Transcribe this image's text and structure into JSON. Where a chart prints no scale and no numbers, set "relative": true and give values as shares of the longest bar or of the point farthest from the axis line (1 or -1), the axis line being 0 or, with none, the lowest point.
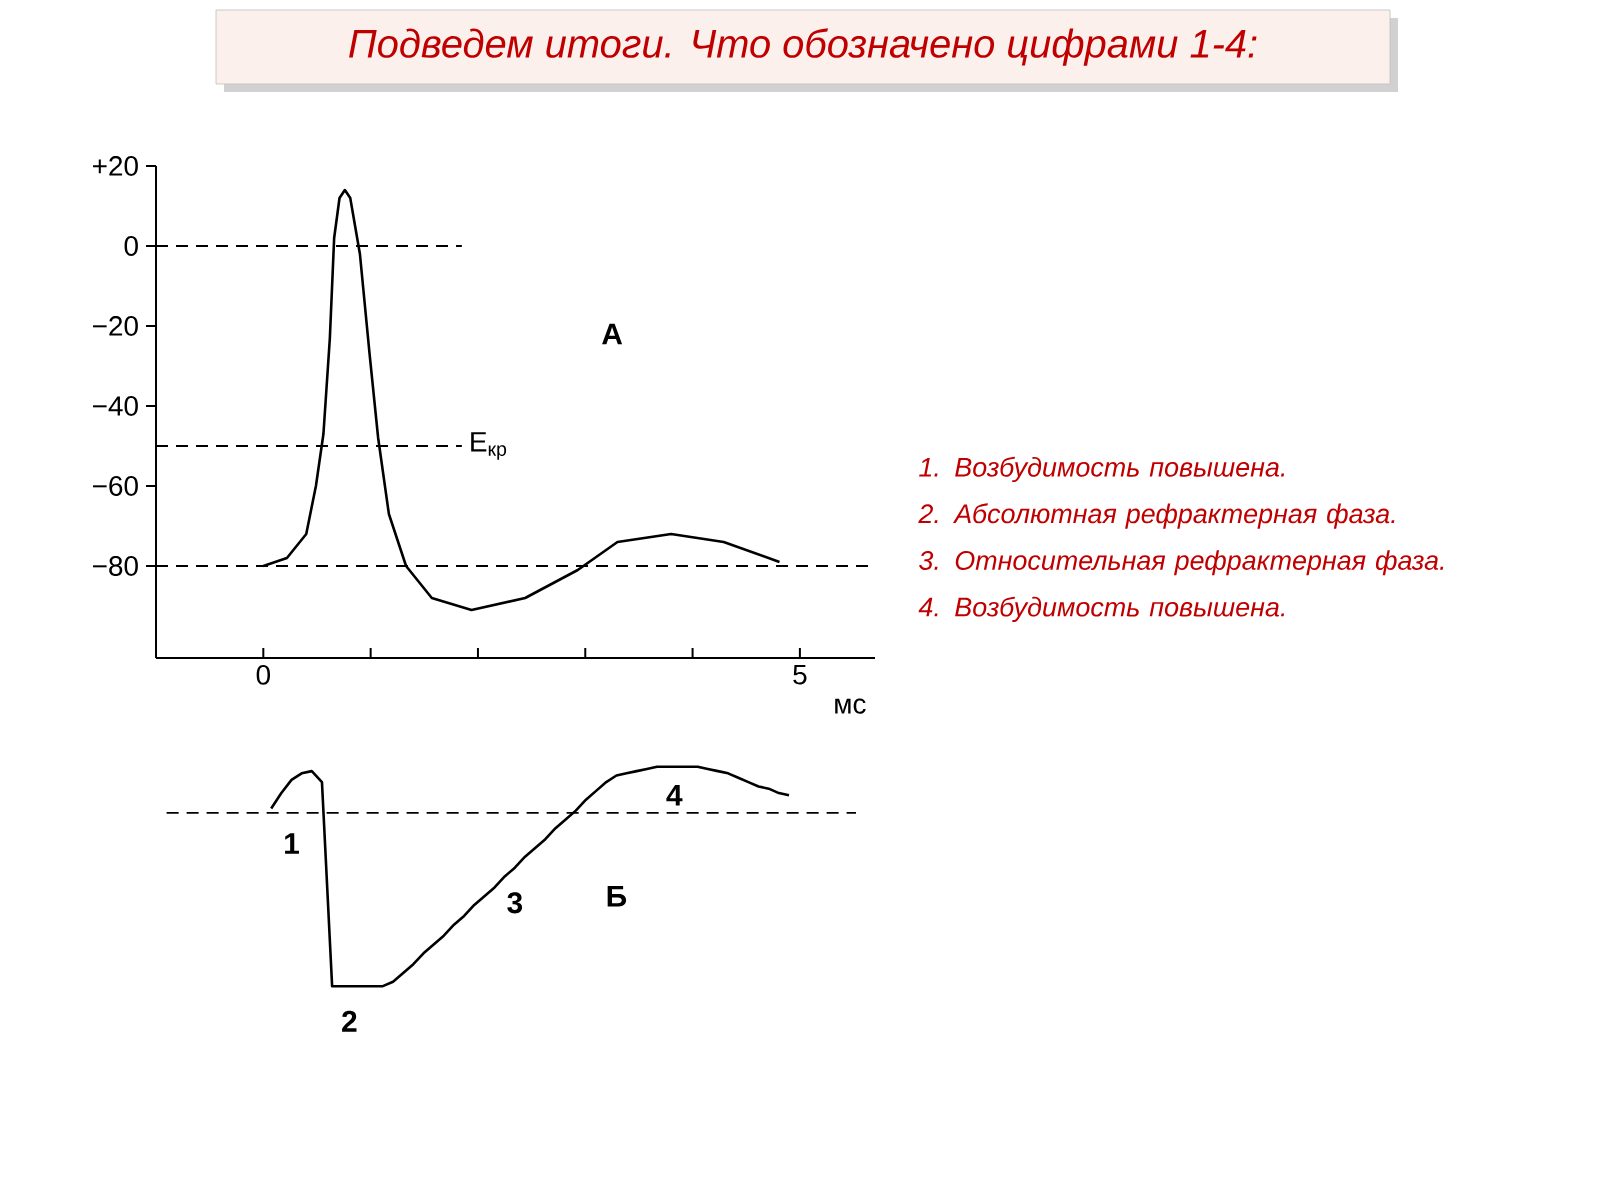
{
  "chart_data": [
    {
      "type": "line",
      "title": "Подведем итоги. Что обозначено цифрами 1-4:",
      "xlabel": "мс",
      "x": [
        0,
        0.22,
        0.4,
        0.49,
        0.56,
        0.62,
        0.66,
        0.71,
        0.76,
        0.81,
        0.9,
        0.99,
        1.07,
        1.17,
        1.33,
        1.57,
        1.94,
        2.44,
        2.93,
        3.3,
        3.8,
        4.29,
        4.81
      ],
      "series": [
        {
          "color": "#000000",
          "values": [
            -80,
            -78,
            -72,
            -60,
            -47,
            -23,
            2,
            12,
            14,
            12,
            -2,
            -27,
            -48,
            -67,
            -80,
            -88,
            -91,
            -88,
            -81,
            -74,
            -72,
            -74,
            -79
          ]
        }
      ],
      "xlim": [
        -1,
        5.7
      ],
      "ylim": [
        -103,
        20
      ],
      "xticks": [
        0,
        {
          "value": 1,
          "label": null
        },
        {
          "value": 2,
          "label": null
        },
        {
          "value": 3,
          "label": null
        },
        {
          "value": 4,
          "label": null
        },
        5
      ],
      "yticks": [
        {
          "value": 20,
          "label": "+20"
        },
        0,
        {
          "value": -20,
          "label": "−20"
        },
        {
          "value": -40,
          "label": "−40"
        },
        {
          "value": -60,
          "label": "−60"
        },
        {
          "value": -80,
          "label": "−80"
        }
      ],
      "ref_lines": [
        {
          "axis": "y",
          "value": 0,
          "line_style": "dashed"
        },
        {
          "axis": "y",
          "value": -50,
          "label": "E$_{кр}$",
          "line_style": "dashed"
        },
        {
          "axis": "y",
          "value": -80,
          "line_style": "dashed"
        }
      ],
      "annotations": [
        "А"
      ]
    },
    {
      "type": "line",
      "relative": true,
      "categories": [
        null,
        null,
        null,
        null,
        null,
        null,
        null,
        null,
        null,
        null,
        null,
        null,
        null,
        null,
        null,
        null,
        null,
        null,
        null,
        null,
        null,
        null,
        null,
        null,
        null,
        null,
        null,
        null,
        null,
        null,
        null,
        null,
        null,
        null,
        null,
        null,
        null,
        null,
        null,
        null,
        null,
        null,
        null,
        null,
        null,
        null,
        null,
        null,
        null,
        null,
        null,
        null
      ],
      "series": [
        {
          "color": "#000000",
          "values": [
            0.81,
            0.88,
            0.94,
            0.97,
            0.98,
            0.93,
            0,
            0,
            0,
            0,
            0,
            0,
            0.02,
            0.06,
            0.1,
            0.15,
            0.19,
            0.23,
            0.28,
            0.32,
            0.37,
            0.41,
            0.45,
            0.5,
            0.54,
            0.59,
            0.63,
            0.67,
            0.72,
            0.76,
            0.8,
            0.85,
            0.89,
            0.93,
            0.96,
            0.97,
            0.98,
            0.99,
            1.0,
            1,
            1,
            1,
            1.0,
            0.99,
            0.98,
            0.97,
            0.95,
            0.93,
            0.91,
            0.9,
            0.88,
            0.87
          ]
        }
      ],
      "ref_lines": [
        {
          "axis": "y",
          "value": 0.79,
          "line_style": "dashed"
        }
      ],
      "annotations": [
        "1",
        "2",
        "3",
        "4",
        "Б"
      ]
    },
    {
      "type": "other",
      "annotations": [
        "1. Возбудимость повышена.",
        "2. Абсолютная рефрактерная фаза.",
        "3. Относительная рефрактерная фаза.",
        "4. Возбудимость повышена."
      ]
    }
  ]
}
